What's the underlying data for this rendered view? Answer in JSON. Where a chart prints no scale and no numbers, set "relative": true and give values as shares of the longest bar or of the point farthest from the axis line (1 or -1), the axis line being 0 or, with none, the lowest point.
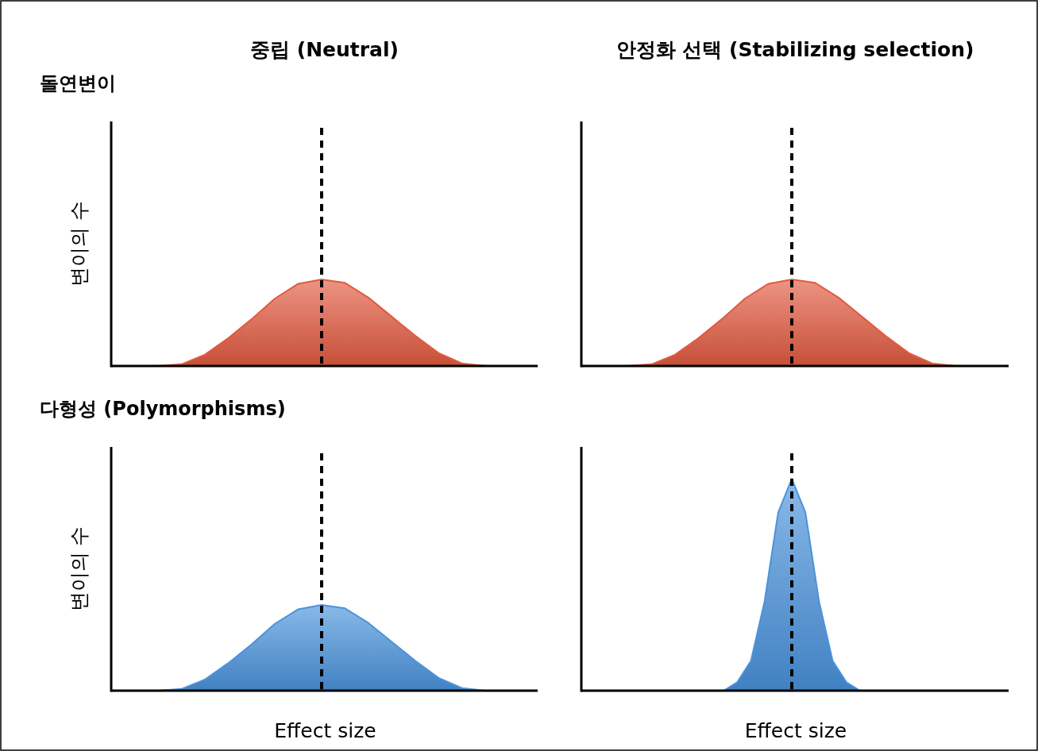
{
  "chart_data": [
    {
      "type": "area",
      "relative": true,
      "title": "중립 (Neutral)",
      "subtitle": "돌연변이",
      "ylabel": "변이의 수",
      "categories": [
        null,
        null,
        null,
        null,
        null,
        null,
        null,
        null,
        null,
        null,
        null,
        null,
        null,
        null,
        null
      ],
      "series": [
        {
          "color": "#e25a40",
          "values": [
            0,
            0.02,
            0.13,
            0.32,
            0.54,
            0.78,
            0.95,
            1,
            0.96,
            0.79,
            0.57,
            0.35,
            0.15,
            0.03,
            0
          ]
        }
      ],
      "ref_lines": [
        {
          "axis": "x",
          "color": "#000000",
          "line_style": "dashed"
        }
      ]
    },
    {
      "type": "area",
      "relative": true,
      "title": "안정화 선택 (Stabilizing selection)",
      "categories": [
        null,
        null,
        null,
        null,
        null,
        null,
        null,
        null,
        null,
        null,
        null,
        null,
        null,
        null,
        null
      ],
      "series": [
        {
          "color": "#e25a40",
          "values": [
            0,
            0.02,
            0.13,
            0.32,
            0.54,
            0.78,
            0.95,
            1,
            0.96,
            0.79,
            0.57,
            0.35,
            0.15,
            0.03,
            0
          ]
        }
      ],
      "ref_lines": [
        {
          "axis": "x",
          "color": "#000000",
          "line_style": "dashed"
        }
      ]
    },
    {
      "type": "area",
      "relative": true,
      "subtitle": "다형성 (Polymorphisms)",
      "ylabel": "변이의 수",
      "xlabel": "Effect size",
      "categories": [
        null,
        null,
        null,
        null,
        null,
        null,
        null,
        null,
        null,
        null,
        null,
        null,
        null,
        null,
        null
      ],
      "series": [
        {
          "color": "#4a93dc",
          "values": [
            0,
            0.02,
            0.13,
            0.32,
            0.54,
            0.78,
            0.95,
            1,
            0.96,
            0.79,
            0.57,
            0.35,
            0.15,
            0.03,
            0
          ]
        }
      ],
      "ref_lines": [
        {
          "axis": "x",
          "color": "#000000",
          "line_style": "dashed"
        }
      ]
    },
    {
      "type": "area",
      "relative": true,
      "xlabel": "Effect size",
      "categories": [
        null,
        null,
        null,
        null,
        null,
        null,
        null,
        null,
        null,
        null,
        null,
        null,
        null,
        null,
        null,
        null,
        null,
        null,
        null,
        null,
        null,
        null,
        null,
        null,
        null
      ],
      "series": [
        {
          "color": "#4a93dc",
          "values": [
            0,
            0,
            0,
            0,
            0,
            0,
            0,
            0,
            0.04,
            0.14,
            0.42,
            0.84,
            1,
            0.84,
            0.42,
            0.14,
            0.04,
            0,
            0,
            0,
            0,
            0,
            0,
            0,
            0
          ]
        }
      ],
      "ref_lines": [
        {
          "axis": "x",
          "color": "#000000",
          "line_style": "dashed"
        }
      ]
    }
  ]
}
